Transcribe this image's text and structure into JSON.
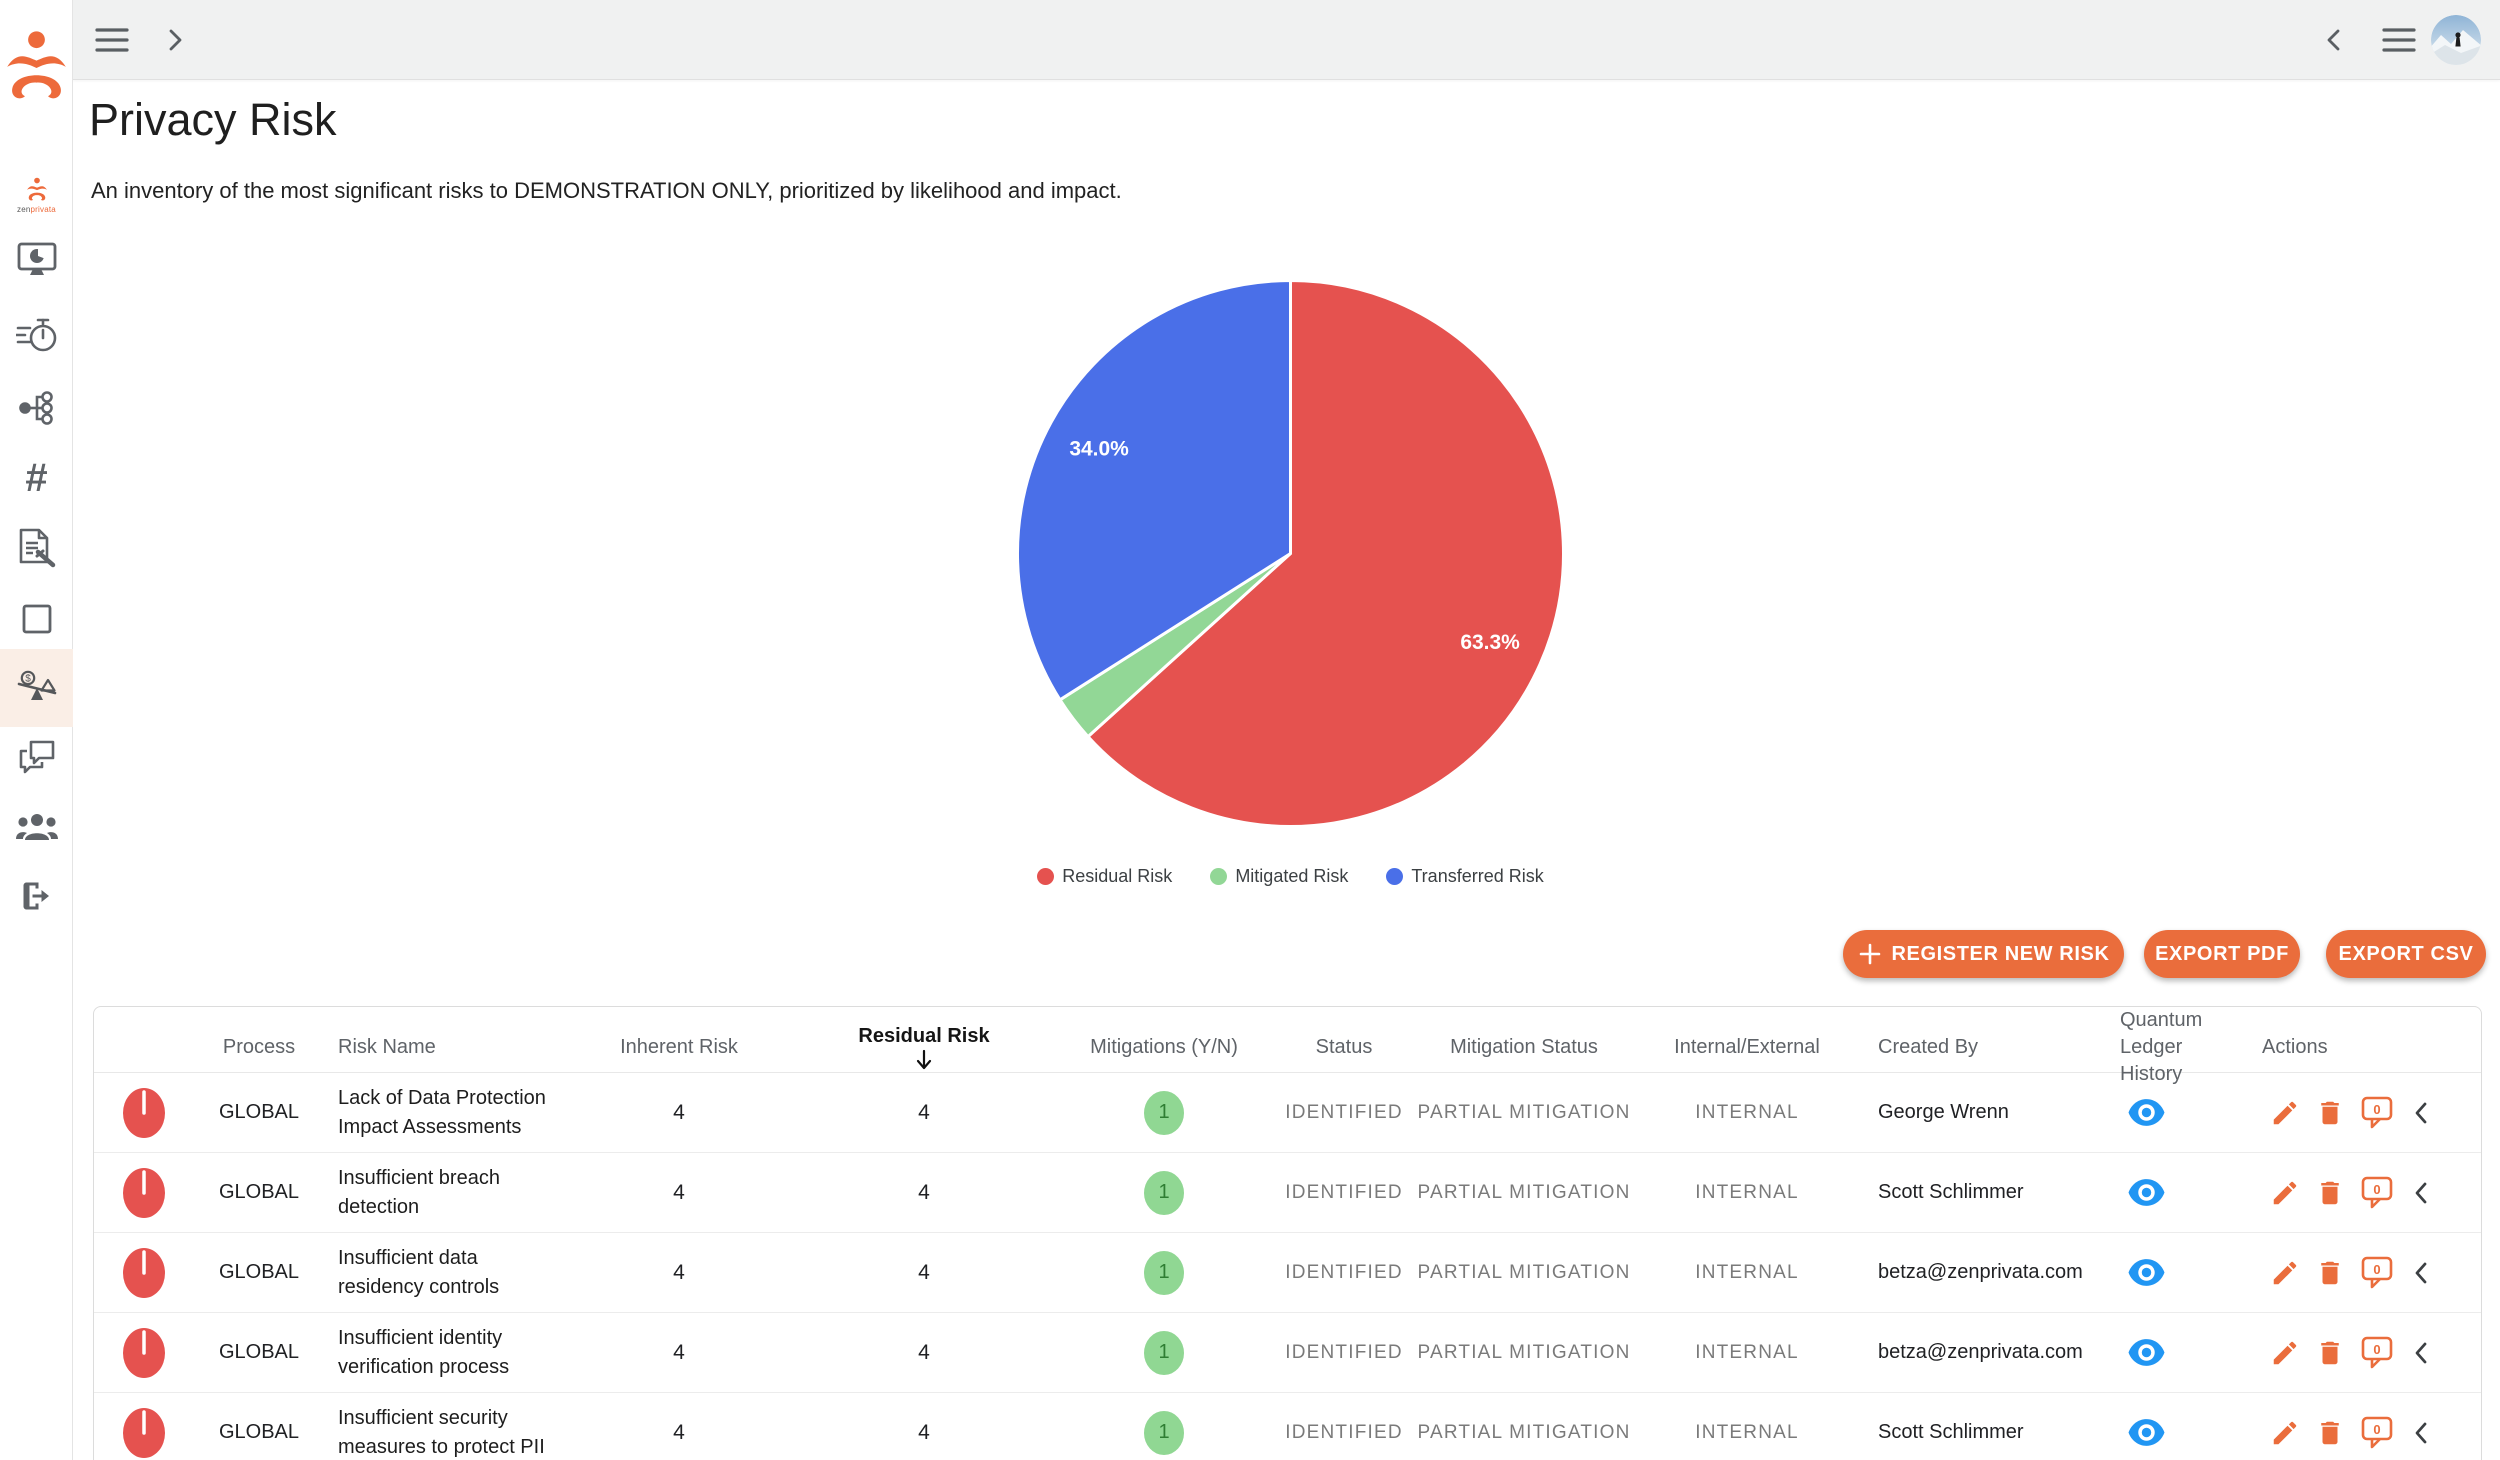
{
  "topbar": {
    "left_icons": [
      "menu-icon",
      "chevron-right-icon"
    ],
    "right_icons": [
      "chevron-left-icon",
      "menu-icon"
    ],
    "avatar": "mountain-photo-avatar"
  },
  "sidebar": {
    "logo_zen": "zen",
    "logo_privata": "privata",
    "items": [
      {
        "id": "home",
        "icon": "zenprivata-logo-icon"
      },
      {
        "id": "dashboard",
        "icon": "monitor-pie-icon"
      },
      {
        "id": "assessments",
        "icon": "timer-icon"
      },
      {
        "id": "data-map",
        "icon": "hierarchy-icon"
      },
      {
        "id": "data-elements",
        "icon": "hash-icon"
      },
      {
        "id": "audit",
        "icon": "document-gavel-icon"
      },
      {
        "id": "frameworks",
        "icon": "square-icon"
      },
      {
        "id": "privacy-risk",
        "icon": "risk-balance-icon",
        "active": true
      },
      {
        "id": "collaboration",
        "icon": "chat-icon"
      },
      {
        "id": "team",
        "icon": "people-icon"
      },
      {
        "id": "logout",
        "icon": "exit-icon"
      }
    ]
  },
  "page": {
    "title": "Privacy Risk",
    "subtitle": "An inventory of the most significant risks to DEMONSTRATION ONLY, prioritized by likelihood and impact."
  },
  "chart_data": {
    "type": "pie",
    "title": "",
    "start_angle_deg": 0,
    "direction": "clockwise",
    "legend_position": "bottom",
    "slices": [
      {
        "label": "Residual Risk",
        "value": 63.3,
        "display": "63.3%",
        "color": "#e5524f"
      },
      {
        "label": "Mitigated Risk",
        "value": 2.7,
        "display": "",
        "color": "#92d796"
      },
      {
        "label": "Transferred Risk",
        "value": 34.0,
        "display": "34.0%",
        "color": "#4a6fe8"
      }
    ]
  },
  "actions_bar": {
    "register_label": "REGISTER NEW RISK",
    "export_pdf_label": "EXPORT PDF",
    "export_csv_label": "EXPORT CSV"
  },
  "table": {
    "columns": [
      "Process",
      "Risk Name",
      "Inherent Risk",
      "Residual Risk",
      "Mitigations (Y/N)",
      "Status",
      "Mitigation Status",
      "Internal/External",
      "Created By",
      "Quantum Ledger History",
      "Actions"
    ],
    "sorted_column": "Residual Risk",
    "sort_direction": "desc",
    "rows": [
      {
        "process": "GLOBAL",
        "risk_name": "Lack of Data Protection Impact Assessments",
        "inherent_risk": "4",
        "residual_risk": "4",
        "mitigations": "1",
        "status": "IDENTIFIED",
        "mitigation_status": "PARTIAL MITIGATION",
        "internal_external": "INTERNAL",
        "created_by": "George Wrenn",
        "comment_count": "0"
      },
      {
        "process": "GLOBAL",
        "risk_name": "Insufficient breach detection",
        "inherent_risk": "4",
        "residual_risk": "4",
        "mitigations": "1",
        "status": "IDENTIFIED",
        "mitigation_status": "PARTIAL MITIGATION",
        "internal_external": "INTERNAL",
        "created_by": "Scott Schlimmer",
        "comment_count": "0"
      },
      {
        "process": "GLOBAL",
        "risk_name": "Insufficient data residency controls",
        "inherent_risk": "4",
        "residual_risk": "4",
        "mitigations": "1",
        "status": "IDENTIFIED",
        "mitigation_status": "PARTIAL MITIGATION",
        "internal_external": "INTERNAL",
        "created_by": "betza@zenprivata.com",
        "comment_count": "0"
      },
      {
        "process": "GLOBAL",
        "risk_name": "Insufficient identity verification process",
        "inherent_risk": "4",
        "residual_risk": "4",
        "mitigations": "1",
        "status": "IDENTIFIED",
        "mitigation_status": "PARTIAL MITIGATION",
        "internal_external": "INTERNAL",
        "created_by": "betza@zenprivata.com",
        "comment_count": "0"
      },
      {
        "process": "GLOBAL",
        "risk_name": "Insufficient security measures to protect PII",
        "inherent_risk": "4",
        "residual_risk": "4",
        "mitigations": "1",
        "status": "IDENTIFIED",
        "mitigation_status": "PARTIAL MITIGATION",
        "internal_external": "INTERNAL",
        "created_by": "Scott Schlimmer",
        "comment_count": "0"
      }
    ]
  },
  "colors": {
    "accent_orange": "#ea6d3c",
    "logo_orange": "#ed6a3b",
    "pie_red": "#e5524f",
    "pie_green": "#92d796",
    "pie_blue": "#4a6fe8",
    "eye_blue": "#2196f3",
    "badge_green_bg": "#90d793",
    "badge_green_text": "#2f7d33",
    "status_gray": "#7a7a7a",
    "topbar_bg": "#f0f1f1",
    "active_item_bg": "#faeee6"
  }
}
